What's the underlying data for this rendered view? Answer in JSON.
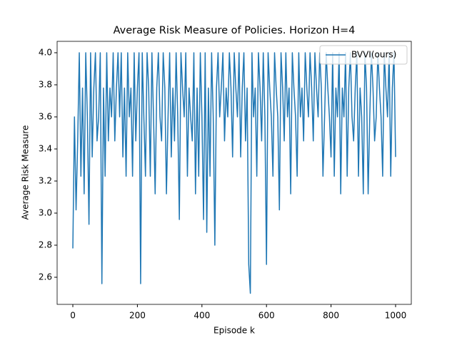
{
  "chart_data": {
    "type": "line",
    "title": "Average Risk Measure of Policies. Horizon H=4",
    "xlabel": "Episode k",
    "ylabel": "Average Risk Measure",
    "legend": "upper right",
    "x": [
      0,
      5,
      10,
      15,
      20,
      25,
      30,
      35,
      40,
      45,
      50,
      55,
      60,
      65,
      70,
      75,
      80,
      85,
      90,
      95,
      100,
      105,
      110,
      115,
      120,
      125,
      130,
      135,
      140,
      145,
      150,
      155,
      160,
      165,
      170,
      175,
      180,
      185,
      190,
      195,
      200,
      205,
      210,
      215,
      220,
      225,
      230,
      235,
      240,
      245,
      250,
      255,
      260,
      265,
      270,
      275,
      280,
      285,
      290,
      295,
      300,
      305,
      310,
      315,
      320,
      325,
      330,
      335,
      340,
      345,
      350,
      355,
      360,
      365,
      370,
      375,
      380,
      385,
      390,
      395,
      400,
      405,
      410,
      415,
      420,
      425,
      430,
      435,
      440,
      445,
      450,
      455,
      460,
      465,
      470,
      475,
      480,
      485,
      490,
      495,
      500,
      505,
      510,
      515,
      520,
      525,
      530,
      535,
      540,
      545,
      550,
      555,
      560,
      565,
      570,
      575,
      580,
      585,
      590,
      595,
      600,
      605,
      610,
      615,
      620,
      625,
      630,
      635,
      640,
      645,
      650,
      655,
      660,
      665,
      670,
      675,
      680,
      685,
      690,
      695,
      700,
      705,
      710,
      715,
      720,
      725,
      730,
      735,
      740,
      745,
      750,
      755,
      760,
      765,
      770,
      775,
      780,
      785,
      790,
      795,
      800,
      805,
      810,
      815,
      820,
      825,
      830,
      835,
      840,
      845,
      850,
      855,
      860,
      865,
      870,
      875,
      880,
      885,
      890,
      895,
      900,
      905,
      910,
      915,
      920,
      925,
      930,
      935,
      940,
      945,
      950,
      955,
      960,
      965,
      970,
      975,
      980,
      985,
      990,
      995,
      1000
    ],
    "series": [
      {
        "name": "BVVI(ours)",
        "color": "#1f77b4",
        "values": [
          2.78,
          3.6,
          3.02,
          3.45,
          4.0,
          3.23,
          3.78,
          3.12,
          4.0,
          3.6,
          2.93,
          4.0,
          3.35,
          3.78,
          4.0,
          3.45,
          3.6,
          4.0,
          2.56,
          3.78,
          3.23,
          4.0,
          3.45,
          3.78,
          3.6,
          4.0,
          3.45,
          3.78,
          4.0,
          3.6,
          4.0,
          3.35,
          3.78,
          3.23,
          4.0,
          3.6,
          3.78,
          3.23,
          4.0,
          3.45,
          3.78,
          4.0,
          2.56,
          4.0,
          3.6,
          3.23,
          4.0,
          3.78,
          3.23,
          4.0,
          3.6,
          3.12,
          3.78,
          4.0,
          3.6,
          3.45,
          4.0,
          3.78,
          3.12,
          3.6,
          4.0,
          3.35,
          3.78,
          3.45,
          4.0,
          3.6,
          2.96,
          4.0,
          3.78,
          3.6,
          4.0,
          3.23,
          3.78,
          3.6,
          3.45,
          4.0,
          3.12,
          3.78,
          3.23,
          4.0,
          3.6,
          2.96,
          4.0,
          2.88,
          3.78,
          3.23,
          4.0,
          3.6,
          2.8,
          3.78,
          4.0,
          3.6,
          3.78,
          4.0,
          3.45,
          3.78,
          3.6,
          4.0,
          3.78,
          3.35,
          4.0,
          3.78,
          3.6,
          4.0,
          3.35,
          3.78,
          4.0,
          3.45,
          3.78,
          2.68,
          2.5,
          4.0,
          3.6,
          3.78,
          3.23,
          4.0,
          3.78,
          3.45,
          4.0,
          3.6,
          2.68,
          4.0,
          3.78,
          3.6,
          3.23,
          4.0,
          3.78,
          3.6,
          3.02,
          4.0,
          3.78,
          3.45,
          4.0,
          3.6,
          3.78,
          3.12,
          4.0,
          3.78,
          3.6,
          3.23,
          4.0,
          3.6,
          3.78,
          3.45,
          4.0,
          3.78,
          3.6,
          4.0,
          3.78,
          3.45,
          4.0,
          3.78,
          3.6,
          4.0,
          3.78,
          3.23,
          3.6,
          4.0,
          3.78,
          3.6,
          3.35,
          4.0,
          3.23,
          3.78,
          3.6,
          4.0,
          3.12,
          3.78,
          3.6,
          4.0,
          3.23,
          3.78,
          4.0,
          3.6,
          3.45,
          3.78,
          4.0,
          3.23,
          3.78,
          3.6,
          3.12,
          4.0,
          3.78,
          3.12,
          3.6,
          4.0,
          3.78,
          3.45,
          3.6,
          4.0,
          3.78,
          3.6,
          3.23,
          4.0,
          3.78,
          3.6,
          4.0,
          3.23,
          3.78,
          4.0,
          3.35
        ]
      }
    ],
    "xlim": [
      -48.7,
      1048.7
    ],
    "xticks": [
      0,
      200,
      400,
      600,
      800,
      1000
    ],
    "ylim": [
      2.431,
      4.071
    ],
    "yticks": [
      2.6,
      2.8,
      {
        "value": 3,
        "label": "3.0"
      },
      3.2,
      3.4,
      3.6,
      3.8,
      {
        "value": 4,
        "label": "4.0"
      }
    ]
  }
}
